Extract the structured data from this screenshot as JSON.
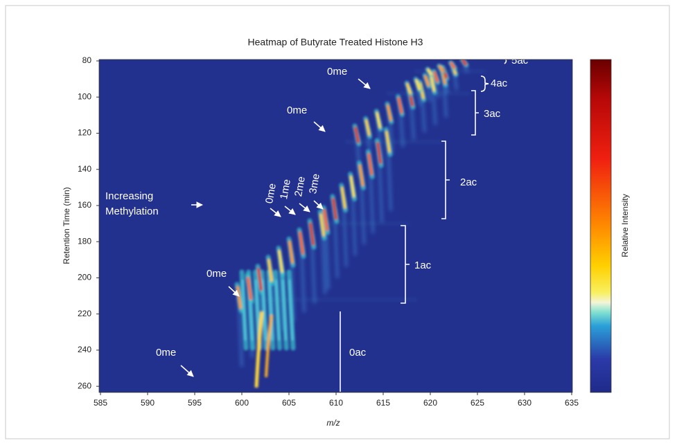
{
  "chart_data": {
    "type": "heatmap",
    "title": "Heatmap of Butyrate Treated Histone H3",
    "x_label": "m/z",
    "y_label": "Retention Time (min)",
    "colorbar_label": "Relative Intensity",
    "xlim": [
      585,
      635
    ],
    "ylim": [
      80,
      263
    ],
    "y_inverted": true,
    "xticks": [
      585,
      590,
      595,
      600,
      605,
      610,
      615,
      620,
      625,
      630,
      635
    ],
    "yticks": [
      80,
      100,
      120,
      140,
      160,
      180,
      200,
      220,
      240,
      260
    ],
    "annotations": [
      "0me",
      "5ac",
      "4ac",
      "0me",
      "3ac",
      "2ac",
      "Increasing",
      "Methylation",
      "0me",
      "1me",
      "2me",
      "3me",
      "1ac",
      "0me",
      "0ac",
      "0me"
    ]
  }
}
